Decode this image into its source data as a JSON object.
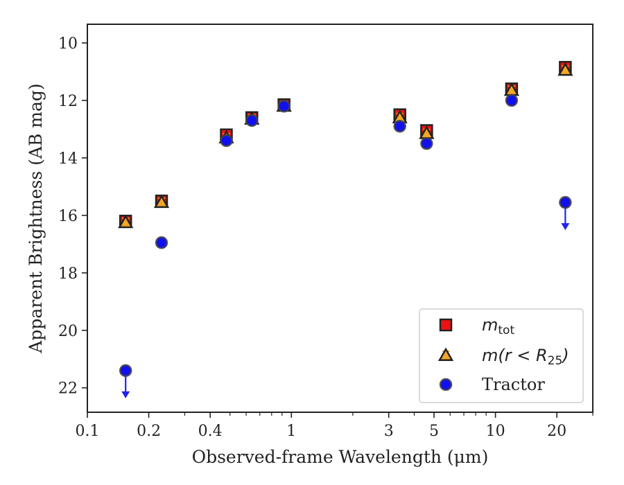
{
  "chart_data": {
    "type": "scatter",
    "title": "",
    "xlabel": "Observed-frame Wavelength (μm)",
    "ylabel": "Apparent Brightness (AB mag)",
    "xscale": "log",
    "xlim": [
      0.1,
      30
    ],
    "ylim": [
      22.85,
      9.35
    ],
    "y_inverted": true,
    "grid": false,
    "legend_position": "bottom-right",
    "xticks": [
      {
        "value": 0.1,
        "label": "0.1"
      },
      {
        "value": 0.2,
        "label": "0.2"
      },
      {
        "value": 0.4,
        "label": "0.4"
      },
      {
        "value": 1,
        "label": "1"
      },
      {
        "value": 3,
        "label": "3"
      },
      {
        "value": 5,
        "label": "5"
      },
      {
        "value": 10,
        "label": "10"
      },
      {
        "value": 20,
        "label": "20"
      }
    ],
    "yticks": [
      {
        "value": 10,
        "label": "10"
      },
      {
        "value": 12,
        "label": "12"
      },
      {
        "value": 14,
        "label": "14"
      },
      {
        "value": 16,
        "label": "16"
      },
      {
        "value": 18,
        "label": "18"
      },
      {
        "value": 20,
        "label": "20"
      },
      {
        "value": 22,
        "label": "22"
      }
    ],
    "series": [
      {
        "label_main": "m",
        "label_sub": "tot",
        "marker": "square",
        "color": "#ee1111",
        "errcolor": "#cc1111",
        "x": [
          0.154,
          0.231,
          0.48,
          0.64,
          0.92,
          3.4,
          4.6,
          12.0,
          22.0
        ],
        "y": [
          16.2,
          15.5,
          13.2,
          12.6,
          12.15,
          12.5,
          13.05,
          11.6,
          10.85
        ]
      },
      {
        "label_main": "m(r < R",
        "label_sub": "25",
        "label_end": ")",
        "marker": "triangle",
        "color": "#f5a623",
        "errcolor": "#e0a020",
        "x": [
          0.154,
          0.231,
          0.48,
          0.64,
          0.92,
          3.4,
          4.6,
          12.0,
          22.0
        ],
        "y": [
          16.25,
          15.55,
          13.3,
          12.65,
          12.2,
          12.6,
          13.15,
          11.65,
          10.95
        ]
      },
      {
        "label": "Tractor",
        "marker": "circle",
        "color": "#1010ee",
        "errcolor": "#3333ee",
        "x": [
          0.154,
          0.231,
          0.48,
          0.64,
          0.92,
          3.4,
          4.6,
          12.0,
          22.0
        ],
        "y": [
          21.4,
          16.95,
          13.4,
          12.7,
          12.2,
          12.9,
          13.5,
          12.0,
          15.55
        ],
        "upper_limits": [
          true,
          false,
          false,
          false,
          false,
          false,
          false,
          false,
          true
        ]
      }
    ]
  }
}
